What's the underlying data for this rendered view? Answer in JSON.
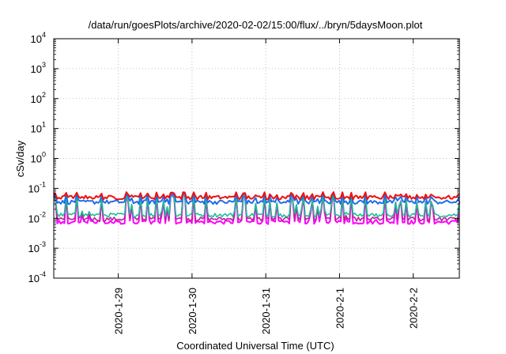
{
  "chart_data": {
    "type": "line",
    "title": "/data/run/goesPlots/archive/2020-02-02/15:00/flux/../bryn/5daysMoon.plot",
    "xlabel": "Coordinated Universal Time (UTC)",
    "ylabel": "cSv/day",
    "yscale": "log",
    "ylim": [
      0.0001,
      10000
    ],
    "yticks": [
      {
        "value": 0.0001,
        "mant": "10",
        "exp": "-4"
      },
      {
        "value": 0.001,
        "mant": "10",
        "exp": "-3"
      },
      {
        "value": 0.01,
        "mant": "10",
        "exp": "-2"
      },
      {
        "value": 0.1,
        "mant": "10",
        "exp": "-1"
      },
      {
        "value": 1,
        "mant": "10",
        "exp": "0"
      },
      {
        "value": 10,
        "mant": "10",
        "exp": "1"
      },
      {
        "value": 100,
        "mant": "10",
        "exp": "2"
      },
      {
        "value": 1000,
        "mant": "10",
        "exp": "3"
      },
      {
        "value": 10000,
        "mant": "10",
        "exp": "4"
      }
    ],
    "xlim": [
      "2020-01-28 03:00",
      "2020-02-02 15:00"
    ],
    "xticks": [
      {
        "value": "2020-01-29 00:00",
        "label": "2020-1-29"
      },
      {
        "value": "2020-01-30 00:00",
        "label": "2020-1-30"
      },
      {
        "value": "2020-01-31 00:00",
        "label": "2020-1-31"
      },
      {
        "value": "2020-02-01 00:00",
        "label": "2020-2-1"
      },
      {
        "value": "2020-02-02 00:00",
        "label": "2020-2-2"
      }
    ],
    "grid": true,
    "series_colors": [
      "#ee1111",
      "#1f6fe8",
      "#22bb99",
      "#bb2299",
      "#ff00ff"
    ],
    "series_baseline": [
      0.05,
      0.035,
      0.013,
      0.0095,
      0.0075
    ],
    "series_peak": [
      0.075,
      0.07,
      0.06,
      0.06,
      0.065
    ]
  }
}
